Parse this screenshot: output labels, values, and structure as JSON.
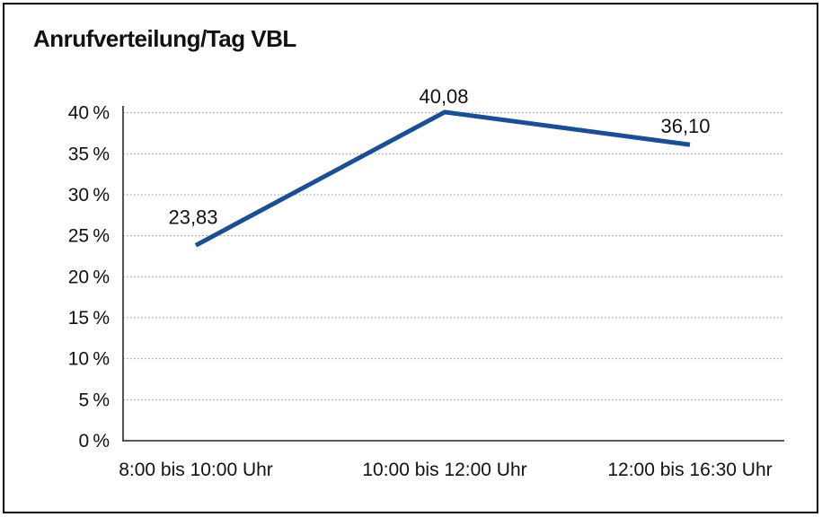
{
  "title": "Anrufverteilung/Tag VBL",
  "colors": {
    "line": "#1b4f94",
    "grid": "#8f8f8f",
    "axis": "#404040",
    "text": "#111111",
    "border": "#000000",
    "background": "#ffffff"
  },
  "chart_data": {
    "type": "line",
    "title": "Anrufverteilung/Tag VBL",
    "categories": [
      "8:00 bis 10:00 Uhr",
      "10:00 bis 12:00 Uhr",
      "12:00 bis 16:30 Uhr"
    ],
    "values": [
      23.83,
      40.08,
      36.1
    ],
    "data_labels": [
      "23,83",
      "40,08",
      "36,10"
    ],
    "y_ticks": [
      "0 %",
      "5 %",
      "10 %",
      "15 %",
      "20 %",
      "25 %",
      "30 %",
      "35 %",
      "40 %"
    ],
    "y_tick_step": 5,
    "xlabel": "",
    "ylabel": "",
    "ylim": [
      0,
      40
    ],
    "grid": "horizontal-dotted",
    "legend": "none"
  }
}
